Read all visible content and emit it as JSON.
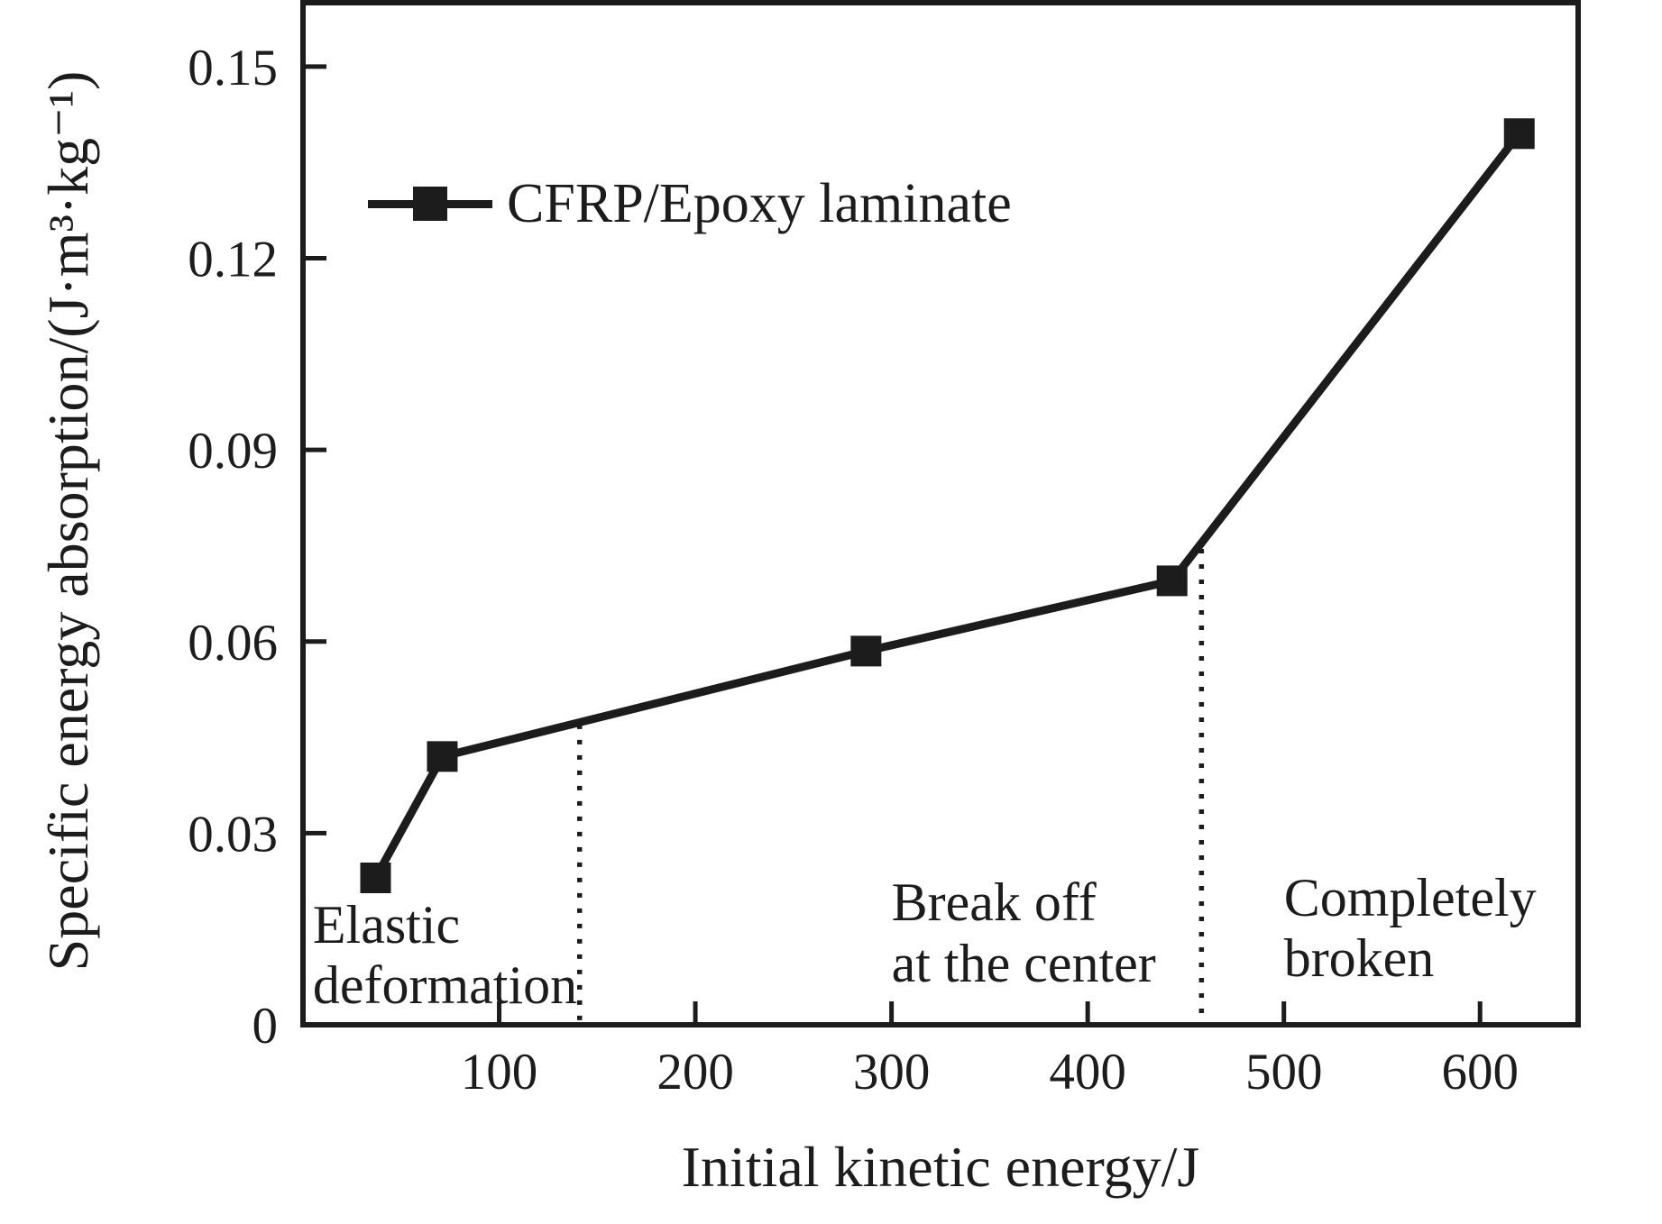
{
  "figure": {
    "background": "#ffffff",
    "ink_color": "#1c1c1c"
  },
  "chart_data": {
    "type": "line",
    "title": "",
    "xlabel": "Initial kinetic energy/J",
    "ylabel": "Specific energy absorption/(J·m³·kg⁻¹)",
    "xlim": [
      0,
      650
    ],
    "ylim": [
      0,
      0.16
    ],
    "grid": false,
    "legend_position": "upper-left-inside",
    "x_ticks": [
      {
        "v": 100,
        "label": "100"
      },
      {
        "v": 200,
        "label": "200"
      },
      {
        "v": 300,
        "label": "300"
      },
      {
        "v": 400,
        "label": "400"
      },
      {
        "v": 500,
        "label": "500"
      },
      {
        "v": 600,
        "label": "600"
      }
    ],
    "y_ticks": [
      {
        "v": 0,
        "label": "0"
      },
      {
        "v": 0.03,
        "label": "0.03"
      },
      {
        "v": 0.06,
        "label": "0.06"
      },
      {
        "v": 0.09,
        "label": "0.09"
      },
      {
        "v": 0.12,
        "label": "0.12"
      },
      {
        "v": 0.15,
        "label": "0.15"
      }
    ],
    "series": [
      {
        "name": "CFRP/Epoxy laminate",
        "marker": "filled-square",
        "color": "#1c1c1c",
        "points": [
          {
            "x": 37,
            "y": 0.023
          },
          {
            "x": 71,
            "y": 0.042
          },
          {
            "x": 287,
            "y": 0.0585
          },
          {
            "x": 443,
            "y": 0.0695
          },
          {
            "x": 620,
            "y": 0.1395
          }
        ]
      }
    ],
    "region_boundaries": [
      {
        "x": 141,
        "y_top": 0.047,
        "style": "dotted"
      },
      {
        "x": 458,
        "y_top": 0.0745,
        "style": "dotted"
      }
    ],
    "annotations": [
      {
        "text": "Elastic\ndeformation",
        "x": 5,
        "y": 0.0203
      },
      {
        "text": "Break off\nat the center",
        "x": 300,
        "y": 0.0238
      },
      {
        "text": "Completely\nbroken",
        "x": 500,
        "y": 0.0246
      }
    ]
  }
}
